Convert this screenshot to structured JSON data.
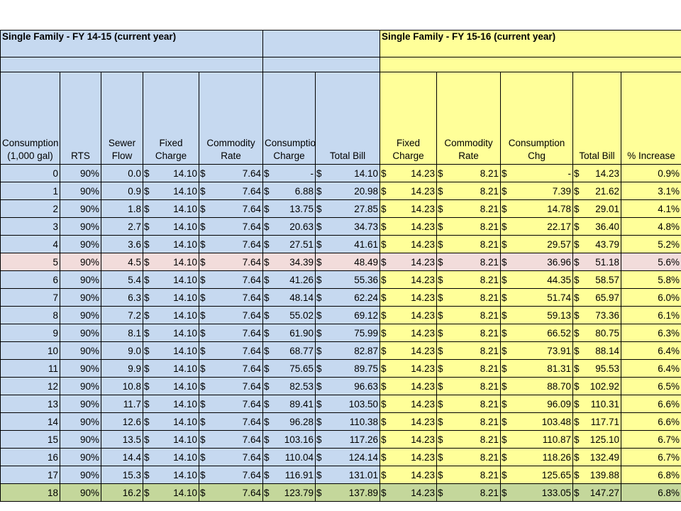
{
  "titles": {
    "fy1415": "Single Family - FY 14-15 (current year)",
    "fy1516": "Single Family - FY 15-16 (current year)"
  },
  "headers": {
    "consumption": "Consumption (1,000 gal)",
    "rts": "RTS",
    "sewer_flow": "Sewer Flow",
    "fixed_charge_1415": "Fixed Charge",
    "commodity_rate_1415": "Commodity Rate",
    "consumption_charge_1415": "Consumption Charge",
    "total_bill_1415": "Total Bill",
    "fixed_charge_1516": "Fixed Charge",
    "commodity_rate_1516": "Commodity Rate",
    "consumption_chg_1516": "Consumption Chg",
    "total_bill_1516": "Total Bill",
    "pct_increase": "% Increase"
  },
  "currency_symbol": "$",
  "rows": [
    {
      "c": "0",
      "rts": "90%",
      "flow": "0.0",
      "fc1": "14.10",
      "cr1": "7.64",
      "cc1": "-",
      "tb1": "14.10",
      "fc2": "14.23",
      "cr2": "8.21",
      "cc2": "-",
      "tb2": "14.23",
      "pct": "0.9%"
    },
    {
      "c": "1",
      "rts": "90%",
      "flow": "0.9",
      "fc1": "14.10",
      "cr1": "7.64",
      "cc1": "6.88",
      "tb1": "20.98",
      "fc2": "14.23",
      "cr2": "8.21",
      "cc2": "7.39",
      "tb2": "21.62",
      "pct": "3.1%"
    },
    {
      "c": "2",
      "rts": "90%",
      "flow": "1.8",
      "fc1": "14.10",
      "cr1": "7.64",
      "cc1": "13.75",
      "tb1": "27.85",
      "fc2": "14.23",
      "cr2": "8.21",
      "cc2": "14.78",
      "tb2": "29.01",
      "pct": "4.1%"
    },
    {
      "c": "3",
      "rts": "90%",
      "flow": "2.7",
      "fc1": "14.10",
      "cr1": "7.64",
      "cc1": "20.63",
      "tb1": "34.73",
      "fc2": "14.23",
      "cr2": "8.21",
      "cc2": "22.17",
      "tb2": "36.40",
      "pct": "4.8%"
    },
    {
      "c": "4",
      "rts": "90%",
      "flow": "3.6",
      "fc1": "14.10",
      "cr1": "7.64",
      "cc1": "27.51",
      "tb1": "41.61",
      "fc2": "14.23",
      "cr2": "8.21",
      "cc2": "29.57",
      "tb2": "43.79",
      "pct": "5.2%"
    },
    {
      "c": "5",
      "rts": "90%",
      "flow": "4.5",
      "fc1": "14.10",
      "cr1": "7.64",
      "cc1": "34.39",
      "tb1": "48.49",
      "fc2": "14.23",
      "cr2": "8.21",
      "cc2": "36.96",
      "tb2": "51.18",
      "pct": "5.6%"
    },
    {
      "c": "6",
      "rts": "90%",
      "flow": "5.4",
      "fc1": "14.10",
      "cr1": "7.64",
      "cc1": "41.26",
      "tb1": "55.36",
      "fc2": "14.23",
      "cr2": "8.21",
      "cc2": "44.35",
      "tb2": "58.57",
      "pct": "5.8%"
    },
    {
      "c": "7",
      "rts": "90%",
      "flow": "6.3",
      "fc1": "14.10",
      "cr1": "7.64",
      "cc1": "48.14",
      "tb1": "62.24",
      "fc2": "14.23",
      "cr2": "8.21",
      "cc2": "51.74",
      "tb2": "65.97",
      "pct": "6.0%"
    },
    {
      "c": "8",
      "rts": "90%",
      "flow": "7.2",
      "fc1": "14.10",
      "cr1": "7.64",
      "cc1": "55.02",
      "tb1": "69.12",
      "fc2": "14.23",
      "cr2": "8.21",
      "cc2": "59.13",
      "tb2": "73.36",
      "pct": "6.1%"
    },
    {
      "c": "9",
      "rts": "90%",
      "flow": "8.1",
      "fc1": "14.10",
      "cr1": "7.64",
      "cc1": "61.90",
      "tb1": "75.99",
      "fc2": "14.23",
      "cr2": "8.21",
      "cc2": "66.52",
      "tb2": "80.75",
      "pct": "6.3%"
    },
    {
      "c": "10",
      "rts": "90%",
      "flow": "9.0",
      "fc1": "14.10",
      "cr1": "7.64",
      "cc1": "68.77",
      "tb1": "82.87",
      "fc2": "14.23",
      "cr2": "8.21",
      "cc2": "73.91",
      "tb2": "88.14",
      "pct": "6.4%"
    },
    {
      "c": "11",
      "rts": "90%",
      "flow": "9.9",
      "fc1": "14.10",
      "cr1": "7.64",
      "cc1": "75.65",
      "tb1": "89.75",
      "fc2": "14.23",
      "cr2": "8.21",
      "cc2": "81.31",
      "tb2": "95.53",
      "pct": "6.4%"
    },
    {
      "c": "12",
      "rts": "90%",
      "flow": "10.8",
      "fc1": "14.10",
      "cr1": "7.64",
      "cc1": "82.53",
      "tb1": "96.63",
      "fc2": "14.23",
      "cr2": "8.21",
      "cc2": "88.70",
      "tb2": "102.92",
      "pct": "6.5%"
    },
    {
      "c": "13",
      "rts": "90%",
      "flow": "11.7",
      "fc1": "14.10",
      "cr1": "7.64",
      "cc1": "89.41",
      "tb1": "103.50",
      "fc2": "14.23",
      "cr2": "8.21",
      "cc2": "96.09",
      "tb2": "110.31",
      "pct": "6.6%"
    },
    {
      "c": "14",
      "rts": "90%",
      "flow": "12.6",
      "fc1": "14.10",
      "cr1": "7.64",
      "cc1": "96.28",
      "tb1": "110.38",
      "fc2": "14.23",
      "cr2": "8.21",
      "cc2": "103.48",
      "tb2": "117.71",
      "pct": "6.6%"
    },
    {
      "c": "15",
      "rts": "90%",
      "flow": "13.5",
      "fc1": "14.10",
      "cr1": "7.64",
      "cc1": "103.16",
      "tb1": "117.26",
      "fc2": "14.23",
      "cr2": "8.21",
      "cc2": "110.87",
      "tb2": "125.10",
      "pct": "6.7%"
    },
    {
      "c": "16",
      "rts": "90%",
      "flow": "14.4",
      "fc1": "14.10",
      "cr1": "7.64",
      "cc1": "110.04",
      "tb1": "124.14",
      "fc2": "14.23",
      "cr2": "8.21",
      "cc2": "118.26",
      "tb2": "132.49",
      "pct": "6.7%"
    },
    {
      "c": "17",
      "rts": "90%",
      "flow": "15.3",
      "fc1": "14.10",
      "cr1": "7.64",
      "cc1": "116.91",
      "tb1": "131.01",
      "fc2": "14.23",
      "cr2": "8.21",
      "cc2": "125.65",
      "tb2": "139.88",
      "pct": "6.8%"
    },
    {
      "c": "18",
      "rts": "90%",
      "flow": "16.2",
      "fc1": "14.10",
      "cr1": "7.64",
      "cc1": "123.79",
      "tb1": "137.89",
      "fc2": "14.23",
      "cr2": "8.21",
      "cc2": "133.05",
      "tb2": "147.27",
      "pct": "6.8%"
    }
  ],
  "colors": {
    "blue_fill": "#c6d9f0",
    "yellow_fill": "#ffff99",
    "highlight_row_5": "#f2dcdb",
    "highlight_row_18": "#c4d79b"
  }
}
